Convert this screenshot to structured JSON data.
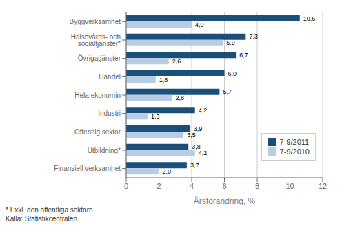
{
  "chart_data": {
    "type": "bar",
    "orientation": "horizontal",
    "categories": [
      "Byggverksamhet",
      "Hälsovårds- och socialtjänster*",
      "Övrigatjänster",
      "Handel",
      "Hela ekonomin",
      "Industri",
      "Offentlig sektor",
      "Utbildning*",
      "Finansiell verksamhet"
    ],
    "series": [
      {
        "name": "7-9/2011",
        "color": "#1a4f7a",
        "values": [
          10.6,
          7.3,
          6.7,
          6.0,
          5.7,
          4.2,
          3.9,
          3.8,
          3.7
        ],
        "value_labels": [
          "10,6",
          "7,3",
          "6,7",
          "6,0",
          "5,7",
          "4,2",
          "3,9",
          "3,8",
          "3,7"
        ]
      },
      {
        "name": "7-9/2010",
        "color": "#b8cce4",
        "values": [
          4.0,
          5.9,
          2.6,
          1.8,
          2.8,
          1.3,
          3.5,
          4.2,
          2.0
        ],
        "value_labels": [
          "4,0",
          "5,9",
          "2,6",
          "1,8",
          "2,8",
          "1,3",
          "3,5",
          "4,2",
          "2,0"
        ]
      }
    ],
    "xlabel": "Årsförändring, %",
    "xlim": [
      0,
      12
    ],
    "xticks": [
      0,
      2,
      4,
      6,
      8,
      10,
      12
    ],
    "grid": true,
    "legend": "lower right",
    "data_labels": true,
    "annotations": [
      "* Exkl. den offentliga sektorn",
      "Källa: Statistikcentralen"
    ]
  }
}
